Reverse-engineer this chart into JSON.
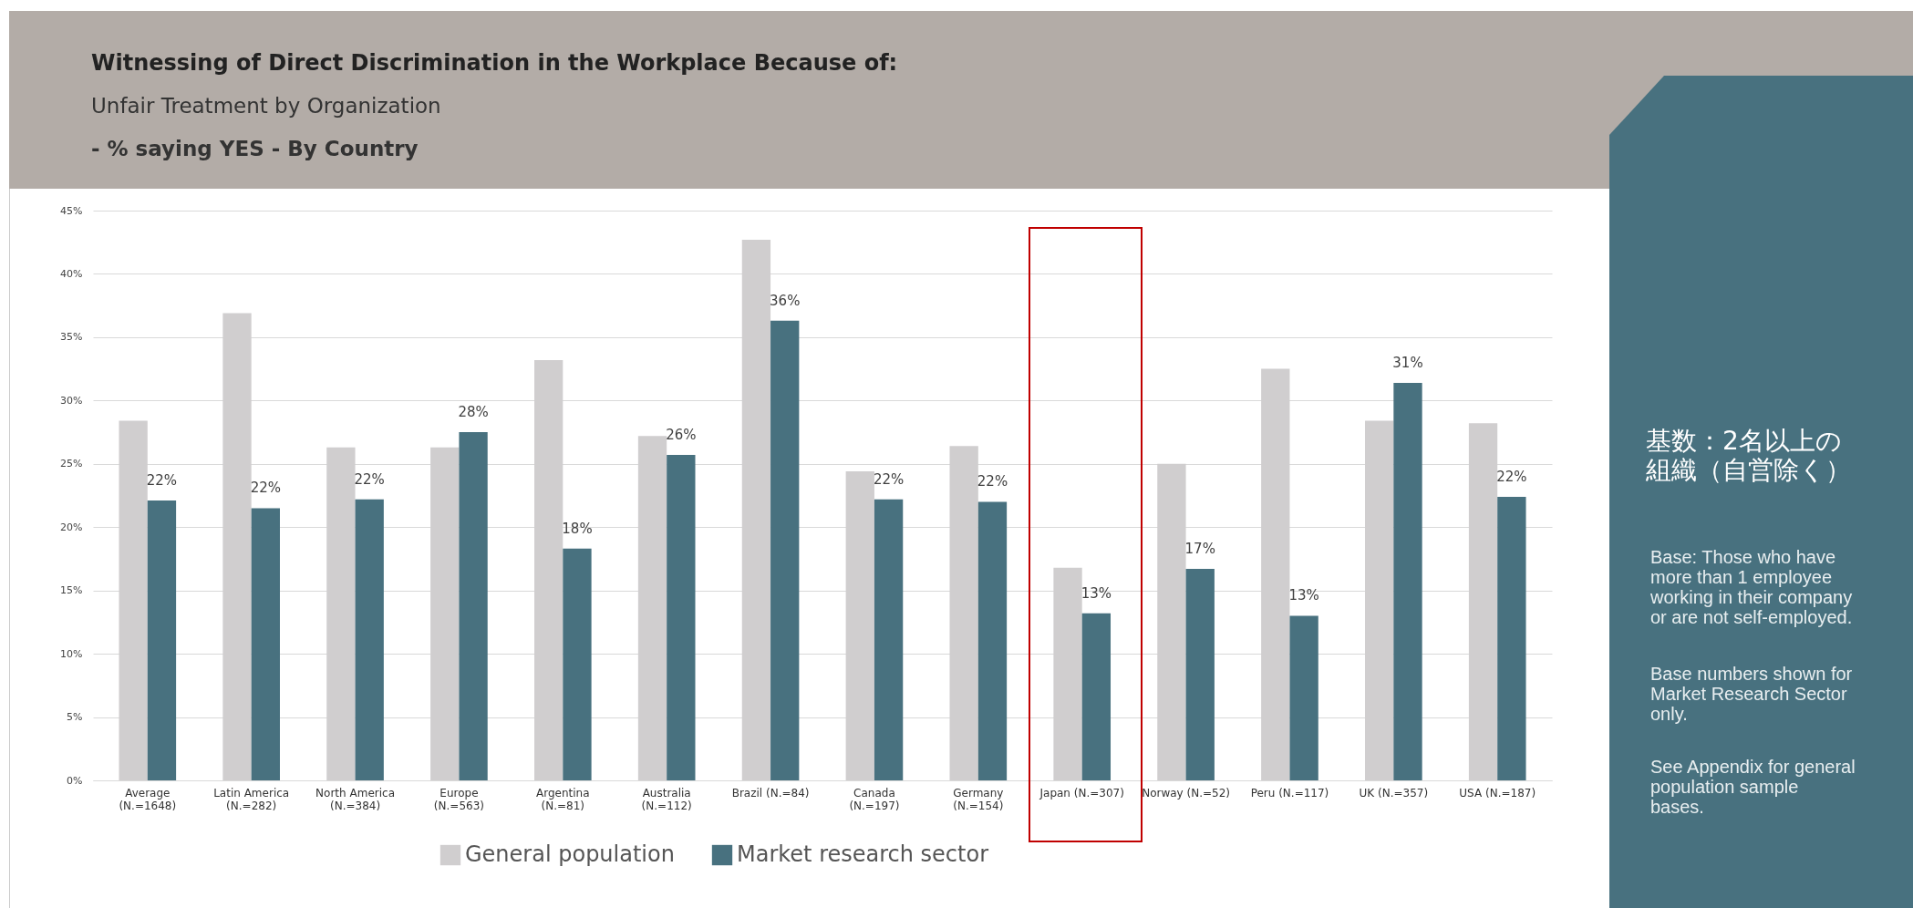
{
  "chart_data": {
    "type": "bar",
    "title": "Witnessing of Direct Discrimination in the Workplace Because of:",
    "subtitle": "Unfair Treatment by Organization",
    "annotations": [
      "- % saying YES - By Country",
      "基数：2名以上の組織（自営除く）",
      "Base: Those who have more than 1 employee working in their company or are not self-employed.",
      "Base numbers shown for Market Research Sector only.",
      "See Appendix for general population sample bases."
    ],
    "categories": [
      "Average (N.=1648)",
      "Latin America (N.=282)",
      "North America (N.=384)",
      "Europe (N.=563)",
      "Argentina (N.=81)",
      "Australia (N.=112)",
      "Brazil (N.=84)",
      "Canada (N.=197)",
      "Germany (N.=154)",
      "Japan (N.=307)",
      "Norway (N.=52)",
      "Peru (N.=117)",
      "UK (N.=357)",
      "USA (N.=187)"
    ],
    "series": [
      {
        "name": "General population",
        "color": "#d0cecf",
        "values": [
          28.4,
          36.9,
          26.3,
          26.3,
          33.2,
          27.2,
          42.7,
          24.4,
          26.4,
          16.8,
          25.0,
          32.5,
          28.4,
          28.2
        ]
      },
      {
        "name": "Market research sector",
        "color": "#48717f",
        "values": [
          22.1,
          21.5,
          22.2,
          27.5,
          18.3,
          25.7,
          36.3,
          22.2,
          22.0,
          13.2,
          16.7,
          13.0,
          31.4,
          22.4
        ],
        "value_labels": [
          "22%",
          "22%",
          "22%",
          "28%",
          "18%",
          "26%",
          "36%",
          "22%",
          "22%",
          "13%",
          "17%",
          "13%",
          "31%",
          "22%"
        ]
      }
    ],
    "ylim": [
      0,
      45
    ],
    "yticks": [
      {
        "value": 0,
        "label": "0%"
      },
      {
        "value": 5,
        "label": "5%"
      },
      {
        "value": 10,
        "label": "10%"
      },
      {
        "value": 15,
        "label": "15%"
      },
      {
        "value": 20,
        "label": "20%"
      },
      {
        "value": 25,
        "label": "25%"
      },
      {
        "value": 30,
        "label": "30%"
      },
      {
        "value": 35,
        "label": "35%"
      },
      {
        "value": 40,
        "label": "40%"
      },
      {
        "value": 45,
        "label": "45%"
      }
    ],
    "grid": "y",
    "legend": "bottom"
  }
}
